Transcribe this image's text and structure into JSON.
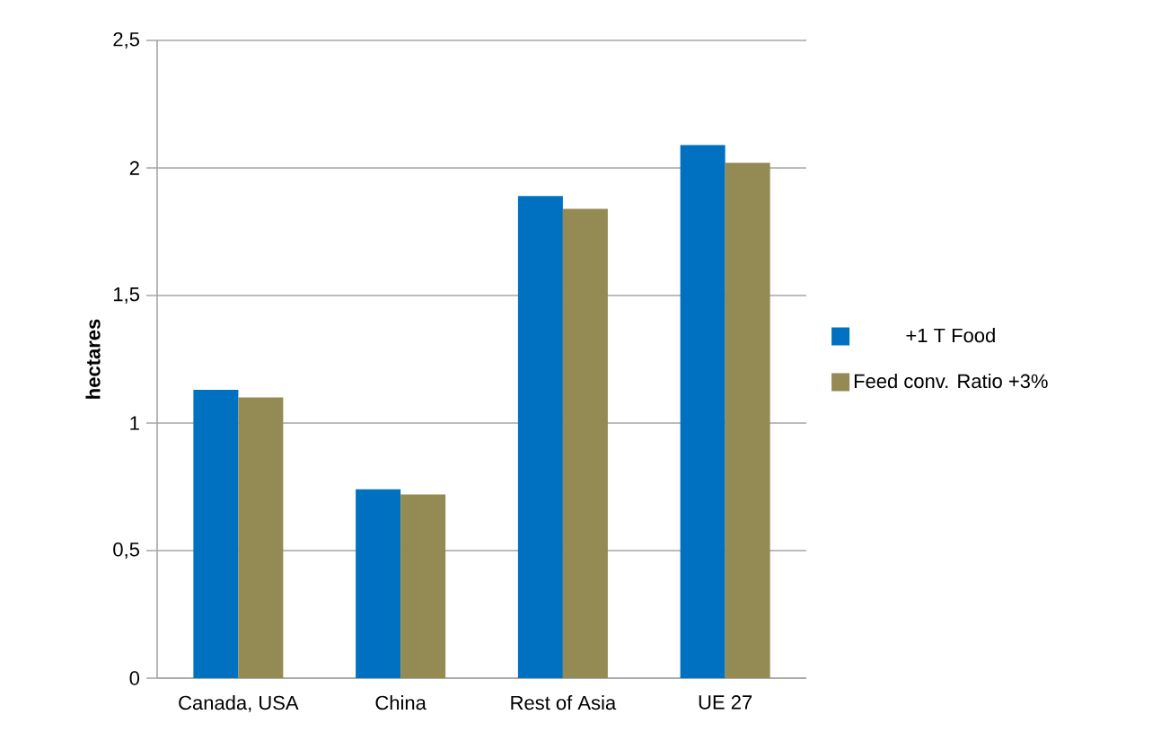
{
  "chart_data": {
    "type": "bar",
    "ylabel": "hectares",
    "categories": [
      "Canada, USA",
      "China",
      "Rest of Asia",
      "UE 27"
    ],
    "series": [
      {
        "name": "+1 T Food",
        "color": "#0070c0",
        "values": [
          1.13,
          0.74,
          1.89,
          2.09
        ]
      },
      {
        "name": "Feed conv. Ratio  +3%",
        "color": "#948a54",
        "values": [
          1.1,
          0.72,
          1.84,
          2.02
        ]
      }
    ],
    "ylim": [
      0,
      2.5
    ],
    "yticks": [
      {
        "value": 0,
        "label": "0"
      },
      {
        "value": 0.5,
        "label": "0,5"
      },
      {
        "value": 1,
        "label": "1"
      },
      {
        "value": 1.5,
        "label": "1,5"
      },
      {
        "value": 2,
        "label": "2"
      },
      {
        "value": 2.5,
        "label": "2,5"
      }
    ],
    "grid": "y",
    "legend": "right"
  }
}
